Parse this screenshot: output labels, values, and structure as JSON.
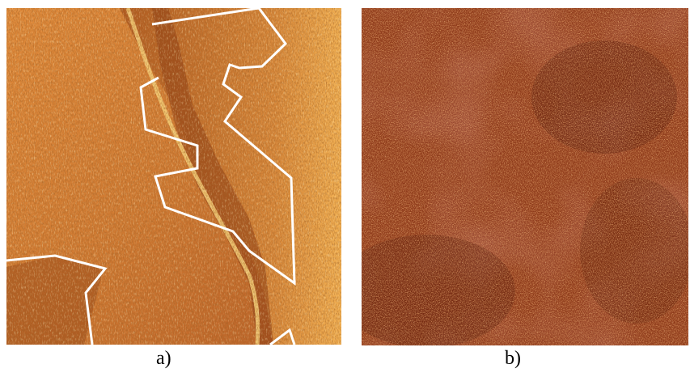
{
  "figure": {
    "panel_a": {
      "caption": "a)"
    },
    "panel_b": {
      "caption": "b)"
    }
  },
  "colors": {
    "afm_light": "#f0b050",
    "afm_mid": "#c8742a",
    "afm_dark": "#8a3a12",
    "noise_dark": "#6e2410",
    "noise_light": "#f4d080",
    "outline": "#ffffff"
  }
}
